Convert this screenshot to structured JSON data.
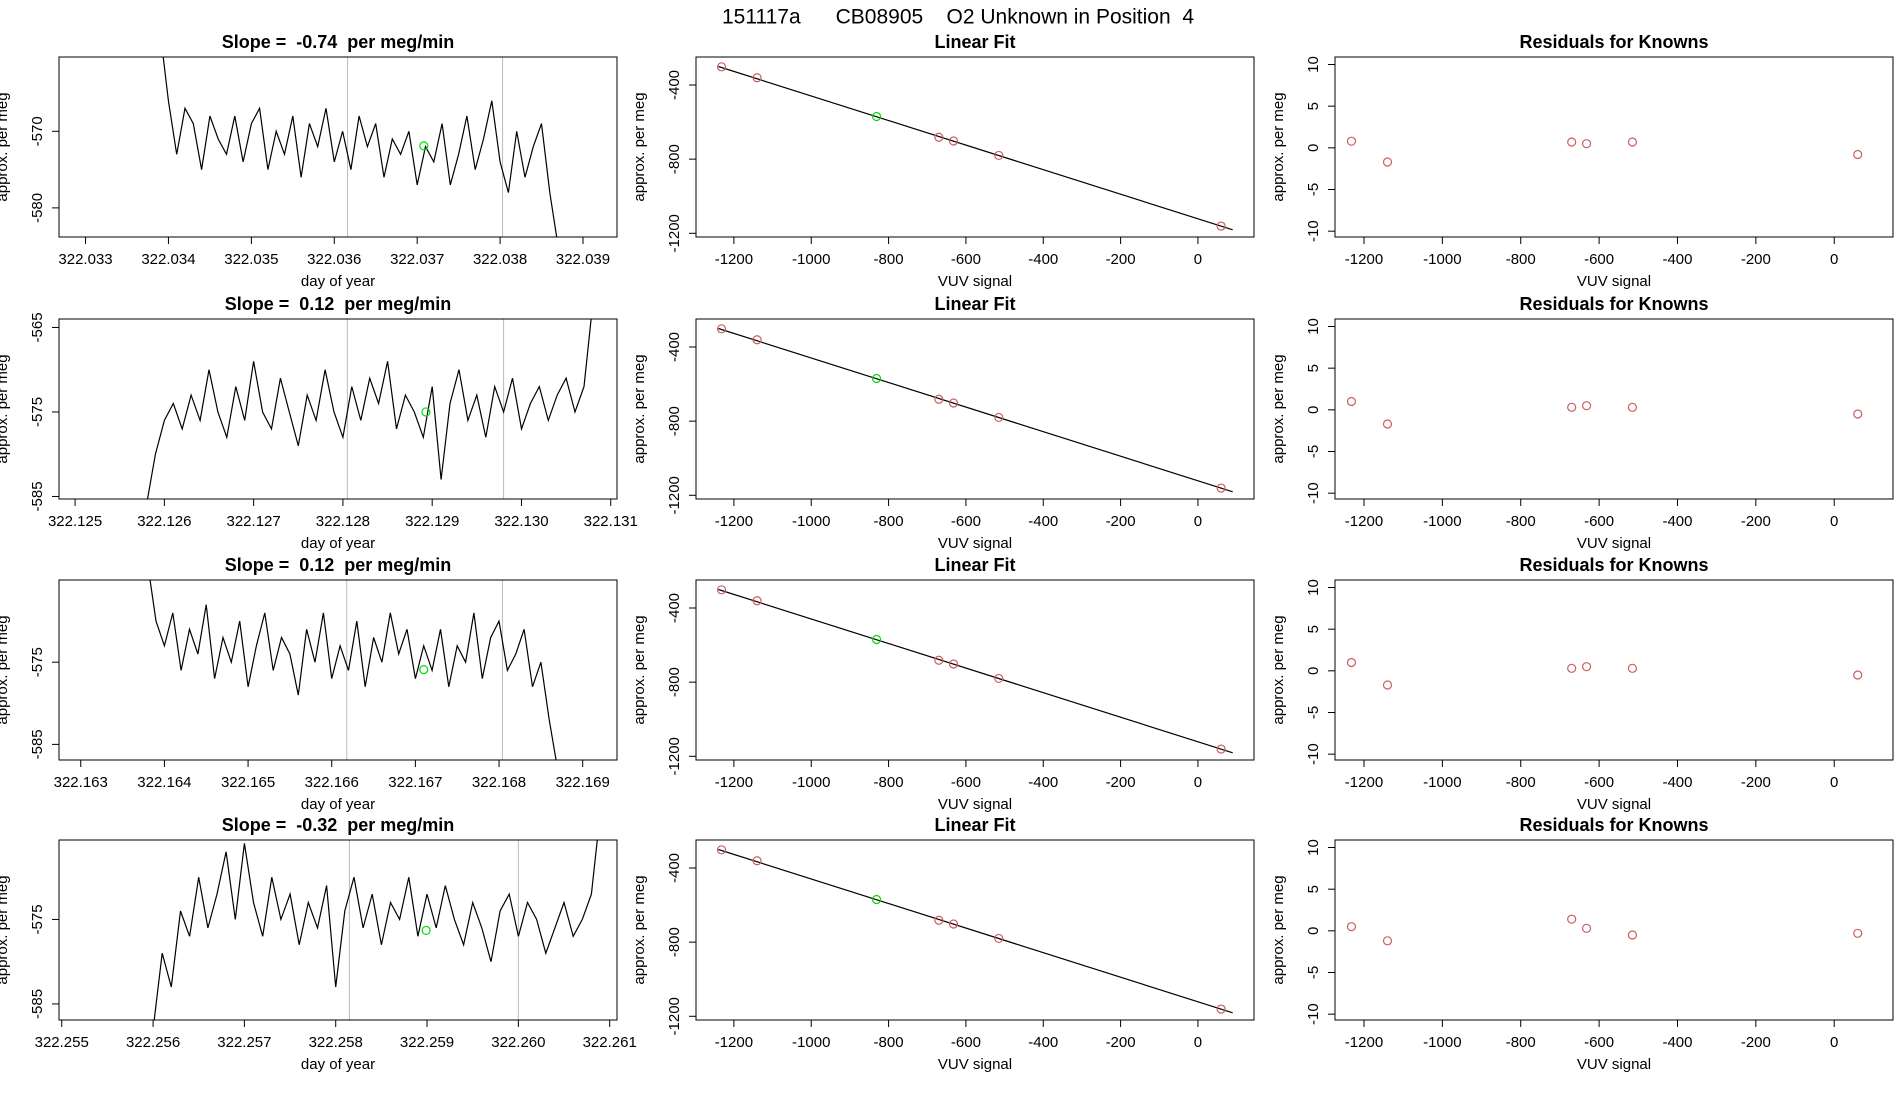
{
  "title": "151117a      CB08905    O2 Unknown in Position  4",
  "chart_data": [
    {
      "type": "line",
      "title": "Slope =  -0.74  per meg/min",
      "xlabel": "day of year",
      "ylabel": "approx. per meg",
      "xlim": [
        322.03268,
        322.03941
      ],
      "ylim": [
        -583.8,
        -560.3
      ],
      "xticks": [
        322.033,
        322.034,
        322.035,
        322.036,
        322.037,
        322.038,
        322.039
      ],
      "yticks": [
        -570,
        -580
      ],
      "vlines": [
        322.03616,
        322.03803
      ],
      "series": [
        {
          "color": "#000000",
          "marker": "line",
          "x": [
            322.0339,
            322.034,
            322.0341,
            322.0342,
            322.0343,
            322.0344,
            322.0345,
            322.0346,
            322.0347,
            322.0348,
            322.0349,
            322.035,
            322.0351,
            322.0352,
            322.0353,
            322.0354,
            322.0355,
            322.0356,
            322.0357,
            322.0358,
            322.0359,
            322.036,
            322.0361,
            322.0362,
            322.0363,
            322.0364,
            322.0365,
            322.0366,
            322.0367,
            322.0368,
            322.0369,
            322.037,
            322.0371,
            322.0372,
            322.0373,
            322.0374,
            322.0375,
            322.0376,
            322.0377,
            322.0378,
            322.0379,
            322.038,
            322.0381,
            322.0382,
            322.0383,
            322.0384,
            322.0385,
            322.0386,
            322.0387
          ],
          "values": [
            -557,
            -566,
            -573,
            -567,
            -569,
            -575,
            -568,
            -571,
            -573,
            -568,
            -574,
            -569,
            -567,
            -575,
            -570,
            -573,
            -568,
            -576,
            -569,
            -572,
            -567,
            -574,
            -570,
            -575,
            -568,
            -572,
            -569,
            -576,
            -571,
            -573,
            -570,
            -577,
            -572,
            -574,
            -569,
            -577,
            -573,
            -568,
            -575,
            -571,
            -566,
            -574,
            -578,
            -570,
            -576,
            -572,
            -569,
            -578,
            -585
          ]
        },
        {
          "color": "#00dd00",
          "marker": "circle",
          "x": [
            322.03708
          ],
          "values": [
            -571.9
          ]
        }
      ]
    },
    {
      "type": "line",
      "title": "Linear Fit",
      "xlabel": "VUV signal",
      "ylabel": "approx. per meg",
      "xlim": [
        -1298,
        145
      ],
      "ylim": [
        -1220,
        -249
      ],
      "xticks": [
        -1200,
        -1000,
        -800,
        -600,
        -400,
        -200,
        0
      ],
      "yticks": [
        -400,
        -800,
        -1200
      ],
      "series": [
        {
          "color": "#000000",
          "marker": "line",
          "x": [
            -1240,
            90
          ],
          "values": [
            -300,
            -1181
          ]
        },
        {
          "color": "#cd5c5c",
          "marker": "circle",
          "x": [
            -1232,
            -1140,
            -670,
            -632,
            -515,
            60
          ],
          "values": [
            -302,
            -361,
            -682,
            -702,
            -780,
            -1161
          ]
        },
        {
          "color": "#00dd00",
          "marker": "circle",
          "x": [
            -831
          ],
          "values": [
            -570
          ]
        }
      ]
    },
    {
      "type": "scatter",
      "title": "Residuals for Knowns",
      "xlabel": "VUV signal",
      "ylabel": "approx. per meg",
      "xlim": [
        -1274,
        150
      ],
      "ylim": [
        -10.7,
        10.9
      ],
      "xticks": [
        -1200,
        -1000,
        -800,
        -600,
        -400,
        -200,
        0
      ],
      "yticks": [
        -10,
        -5,
        0,
        5,
        10
      ],
      "series": [
        {
          "color": "#cd5c5c",
          "marker": "circle",
          "x": [
            -1232,
            -1140,
            -670,
            -632,
            -515,
            60
          ],
          "values": [
            0.8,
            -1.7,
            0.7,
            0.5,
            0.7,
            -0.8
          ]
        }
      ]
    },
    {
      "type": "line",
      "title": "Slope =  0.12  per meg/min",
      "xlabel": "day of year",
      "ylabel": "approx. per meg",
      "xlim": [
        322.12482,
        322.13107
      ],
      "ylim": [
        -585.3,
        -564
      ],
      "xticks": [
        322.125,
        322.126,
        322.127,
        322.128,
        322.129,
        {
          "value": 322.13,
          "label": "322.130"
        },
        322.131
      ],
      "yticks": [
        -565,
        -575,
        -585
      ],
      "vlines": [
        322.12805,
        322.1298
      ],
      "series": [
        {
          "color": "#000000",
          "marker": "line",
          "x": [
            322.1258,
            322.1259,
            322.126,
            322.1261,
            322.1262,
            322.1263,
            322.1264,
            322.1265,
            322.1266,
            322.1267,
            322.1268,
            322.1269,
            322.127,
            322.1271,
            322.1272,
            322.1273,
            322.1274,
            322.1275,
            322.1276,
            322.1277,
            322.1278,
            322.1279,
            322.128,
            322.1281,
            322.1282,
            322.1283,
            322.1284,
            322.1285,
            322.1286,
            322.1287,
            322.1288,
            322.1289,
            322.129,
            322.1291,
            322.1292,
            322.1293,
            322.1294,
            322.1295,
            322.1296,
            322.1297,
            322.1298,
            322.1299,
            322.13,
            322.1301,
            322.1302,
            322.1303,
            322.1304,
            322.1305,
            322.1306,
            322.1307,
            322.1308
          ],
          "values": [
            -586,
            -580,
            -576,
            -574,
            -577,
            -573,
            -576,
            -570,
            -575,
            -578,
            -572,
            -576,
            -569,
            -575,
            -577,
            -571,
            -575,
            -579,
            -573,
            -576,
            -570,
            -575,
            -578,
            -572,
            -576,
            -571,
            -574,
            -569,
            -577,
            -573,
            -575,
            -578,
            -572,
            -583,
            -574,
            -570,
            -576,
            -573,
            -578,
            -572,
            -575,
            -571,
            -577,
            -574,
            -572,
            -576,
            -573,
            -571,
            -575,
            -572,
            -562
          ]
        },
        {
          "color": "#00dd00",
          "marker": "circle",
          "x": [
            322.12893
          ],
          "values": [
            -575
          ]
        }
      ]
    },
    {
      "type": "line",
      "title": "Linear Fit",
      "xlabel": "VUV signal",
      "ylabel": "approx. per meg",
      "xlim": [
        -1298,
        145
      ],
      "ylim": [
        -1220,
        -249
      ],
      "xticks": [
        -1200,
        -1000,
        -800,
        -600,
        -400,
        -200,
        0
      ],
      "yticks": [
        -400,
        -800,
        -1200
      ],
      "series": [
        {
          "color": "#000000",
          "marker": "line",
          "x": [
            -1240,
            90
          ],
          "values": [
            -300,
            -1181
          ]
        },
        {
          "color": "#cd5c5c",
          "marker": "circle",
          "x": [
            -1232,
            -1140,
            -670,
            -632,
            -515,
            60
          ],
          "values": [
            -302,
            -361,
            -682,
            -702,
            -780,
            -1161
          ]
        },
        {
          "color": "#00dd00",
          "marker": "circle",
          "x": [
            -831
          ],
          "values": [
            -570
          ]
        }
      ]
    },
    {
      "type": "scatter",
      "title": "Residuals for Knowns",
      "xlabel": "VUV signal",
      "ylabel": "approx. per meg",
      "xlim": [
        -1274,
        150
      ],
      "ylim": [
        -10.7,
        10.9
      ],
      "xticks": [
        -1200,
        -1000,
        -800,
        -600,
        -400,
        -200,
        0
      ],
      "yticks": [
        -10,
        -5,
        0,
        5,
        10
      ],
      "series": [
        {
          "color": "#cd5c5c",
          "marker": "circle",
          "x": [
            -1232,
            -1140,
            -670,
            -632,
            -515,
            60
          ],
          "values": [
            1.0,
            -1.7,
            0.3,
            0.5,
            0.3,
            -0.5
          ]
        }
      ]
    },
    {
      "type": "line",
      "title": "Slope =  0.12  per meg/min",
      "xlabel": "day of year",
      "ylabel": "approx. per meg",
      "xlim": [
        322.16274,
        322.16941
      ],
      "ylim": [
        -586.9,
        -565
      ],
      "xticks": [
        322.163,
        322.164,
        322.165,
        322.166,
        322.167,
        322.168,
        322.169
      ],
      "yticks": [
        -575,
        -585
      ],
      "vlines": [
        322.16618,
        322.16804
      ],
      "series": [
        {
          "color": "#000000",
          "marker": "line",
          "x": [
            322.1638,
            322.1639,
            322.164,
            322.1641,
            322.1642,
            322.1643,
            322.1644,
            322.1645,
            322.1646,
            322.1647,
            322.1648,
            322.1649,
            322.165,
            322.1651,
            322.1652,
            322.1653,
            322.1654,
            322.1655,
            322.1656,
            322.1657,
            322.1658,
            322.1659,
            322.166,
            322.1661,
            322.1662,
            322.1663,
            322.1664,
            322.1665,
            322.1666,
            322.1667,
            322.1668,
            322.1669,
            322.167,
            322.1671,
            322.1672,
            322.1673,
            322.1674,
            322.1675,
            322.1676,
            322.1677,
            322.1678,
            322.1679,
            322.168,
            322.1681,
            322.1682,
            322.1683,
            322.1684,
            322.1685,
            322.1686,
            322.1687
          ],
          "values": [
            -563,
            -570,
            -573,
            -569,
            -576,
            -571,
            -574,
            -568,
            -577,
            -572,
            -575,
            -570,
            -578,
            -573,
            -569,
            -576,
            -572,
            -574,
            -579,
            -571,
            -575,
            -569,
            -577,
            -573,
            -576,
            -570,
            -578,
            -572,
            -575,
            -569,
            -574,
            -571,
            -577,
            -573,
            -576,
            -571,
            -578,
            -573,
            -575,
            -569,
            -577,
            -572,
            -570,
            -576,
            -574,
            -571,
            -578,
            -575,
            -582,
            -588
          ]
        },
        {
          "color": "#00dd00",
          "marker": "circle",
          "x": [
            322.1671
          ],
          "values": [
            -575.9
          ]
        }
      ]
    },
    {
      "type": "line",
      "title": "Linear Fit",
      "xlabel": "VUV signal",
      "ylabel": "approx. per meg",
      "xlim": [
        -1298,
        145
      ],
      "ylim": [
        -1220,
        -249
      ],
      "xticks": [
        -1200,
        -1000,
        -800,
        -600,
        -400,
        -200,
        0
      ],
      "yticks": [
        -400,
        -800,
        -1200
      ],
      "series": [
        {
          "color": "#000000",
          "marker": "line",
          "x": [
            -1240,
            90
          ],
          "values": [
            -300,
            -1181
          ]
        },
        {
          "color": "#cd5c5c",
          "marker": "circle",
          "x": [
            -1232,
            -1140,
            -670,
            -632,
            -515,
            60
          ],
          "values": [
            -302,
            -361,
            -682,
            -702,
            -780,
            -1161
          ]
        },
        {
          "color": "#00dd00",
          "marker": "circle",
          "x": [
            -831
          ],
          "values": [
            -570
          ]
        }
      ]
    },
    {
      "type": "scatter",
      "title": "Residuals for Knowns",
      "xlabel": "VUV signal",
      "ylabel": "approx. per meg",
      "xlim": [
        -1274,
        150
      ],
      "ylim": [
        -10.7,
        10.9
      ],
      "xticks": [
        -1200,
        -1000,
        -800,
        -600,
        -400,
        -200,
        0
      ],
      "yticks": [
        -10,
        -5,
        0,
        5,
        10
      ],
      "series": [
        {
          "color": "#cd5c5c",
          "marker": "circle",
          "x": [
            -1232,
            -1140,
            -670,
            -632,
            -515,
            60
          ],
          "values": [
            1.0,
            -1.7,
            0.3,
            0.5,
            0.3,
            -0.5
          ]
        }
      ]
    },
    {
      "type": "line",
      "title": "Slope =  -0.32  per meg/min",
      "xlabel": "day of year",
      "ylabel": "approx. per meg",
      "xlim": [
        322.25497,
        322.26108
      ],
      "ylim": [
        -586.9,
        -565.6
      ],
      "xticks": [
        322.255,
        322.256,
        322.257,
        322.258,
        322.259,
        {
          "value": 322.26,
          "label": "322.260"
        },
        322.261
      ],
      "yticks": [
        -575,
        -585
      ],
      "vlines": [
        322.25815,
        322.26
      ],
      "series": [
        {
          "color": "#000000",
          "marker": "line",
          "x": [
            322.256,
            322.2561,
            322.2562,
            322.2563,
            322.2564,
            322.2565,
            322.2566,
            322.2567,
            322.2568,
            322.2569,
            322.257,
            322.2571,
            322.2572,
            322.2573,
            322.2574,
            322.2575,
            322.2576,
            322.2577,
            322.2578,
            322.2579,
            322.258,
            322.2581,
            322.2582,
            322.2583,
            322.2584,
            322.2585,
            322.2586,
            322.2587,
            322.2588,
            322.2589,
            322.259,
            322.2591,
            322.2592,
            322.2593,
            322.2594,
            322.2595,
            322.2596,
            322.2597,
            322.2598,
            322.2599,
            322.26,
            322.2601,
            322.2602,
            322.2603,
            322.2604,
            322.2605,
            322.2606,
            322.2607,
            322.2608,
            322.2609
          ],
          "values": [
            -588,
            -579,
            -583,
            -574,
            -577,
            -570,
            -576,
            -572,
            -567,
            -575,
            -566,
            -573,
            -577,
            -570,
            -575,
            -572,
            -578,
            -573,
            -576,
            -571,
            -583,
            -574,
            -570,
            -576,
            -572,
            -578,
            -573,
            -575,
            -570,
            -577,
            -572,
            -576,
            -571,
            -575,
            -578,
            -573,
            -576,
            -580,
            -574,
            -572,
            -577,
            -573,
            -575,
            -579,
            -576,
            -573,
            -577,
            -575,
            -572,
            -562
          ]
        },
        {
          "color": "#00dd00",
          "marker": "circle",
          "x": [
            322.25899
          ],
          "values": [
            -576.3
          ]
        }
      ]
    },
    {
      "type": "line",
      "title": "Linear Fit",
      "xlabel": "VUV signal",
      "ylabel": "approx. per meg",
      "xlim": [
        -1298,
        145
      ],
      "ylim": [
        -1220,
        -249
      ],
      "xticks": [
        -1200,
        -1000,
        -800,
        -600,
        -400,
        -200,
        0
      ],
      "yticks": [
        -400,
        -800,
        -1200
      ],
      "series": [
        {
          "color": "#000000",
          "marker": "line",
          "x": [
            -1240,
            90
          ],
          "values": [
            -300,
            -1181
          ]
        },
        {
          "color": "#cd5c5c",
          "marker": "circle",
          "x": [
            -1232,
            -1140,
            -670,
            -632,
            -515,
            60
          ],
          "values": [
            -302,
            -361,
            -682,
            -702,
            -780,
            -1161
          ]
        },
        {
          "color": "#00dd00",
          "marker": "circle",
          "x": [
            -831
          ],
          "values": [
            -570
          ]
        }
      ]
    },
    {
      "type": "scatter",
      "title": "Residuals for Knowns",
      "xlabel": "VUV signal",
      "ylabel": "approx. per meg",
      "xlim": [
        -1274,
        150
      ],
      "ylim": [
        -10.7,
        10.9
      ],
      "xticks": [
        -1200,
        -1000,
        -800,
        -600,
        -400,
        -200,
        0
      ],
      "yticks": [
        -10,
        -5,
        0,
        5,
        10
      ],
      "series": [
        {
          "color": "#cd5c5c",
          "marker": "circle",
          "x": [
            -1232,
            -1140,
            -670,
            -632,
            -515,
            60
          ],
          "values": [
            0.5,
            -1.2,
            1.4,
            0.3,
            -0.5,
            -0.3
          ]
        }
      ]
    }
  ]
}
